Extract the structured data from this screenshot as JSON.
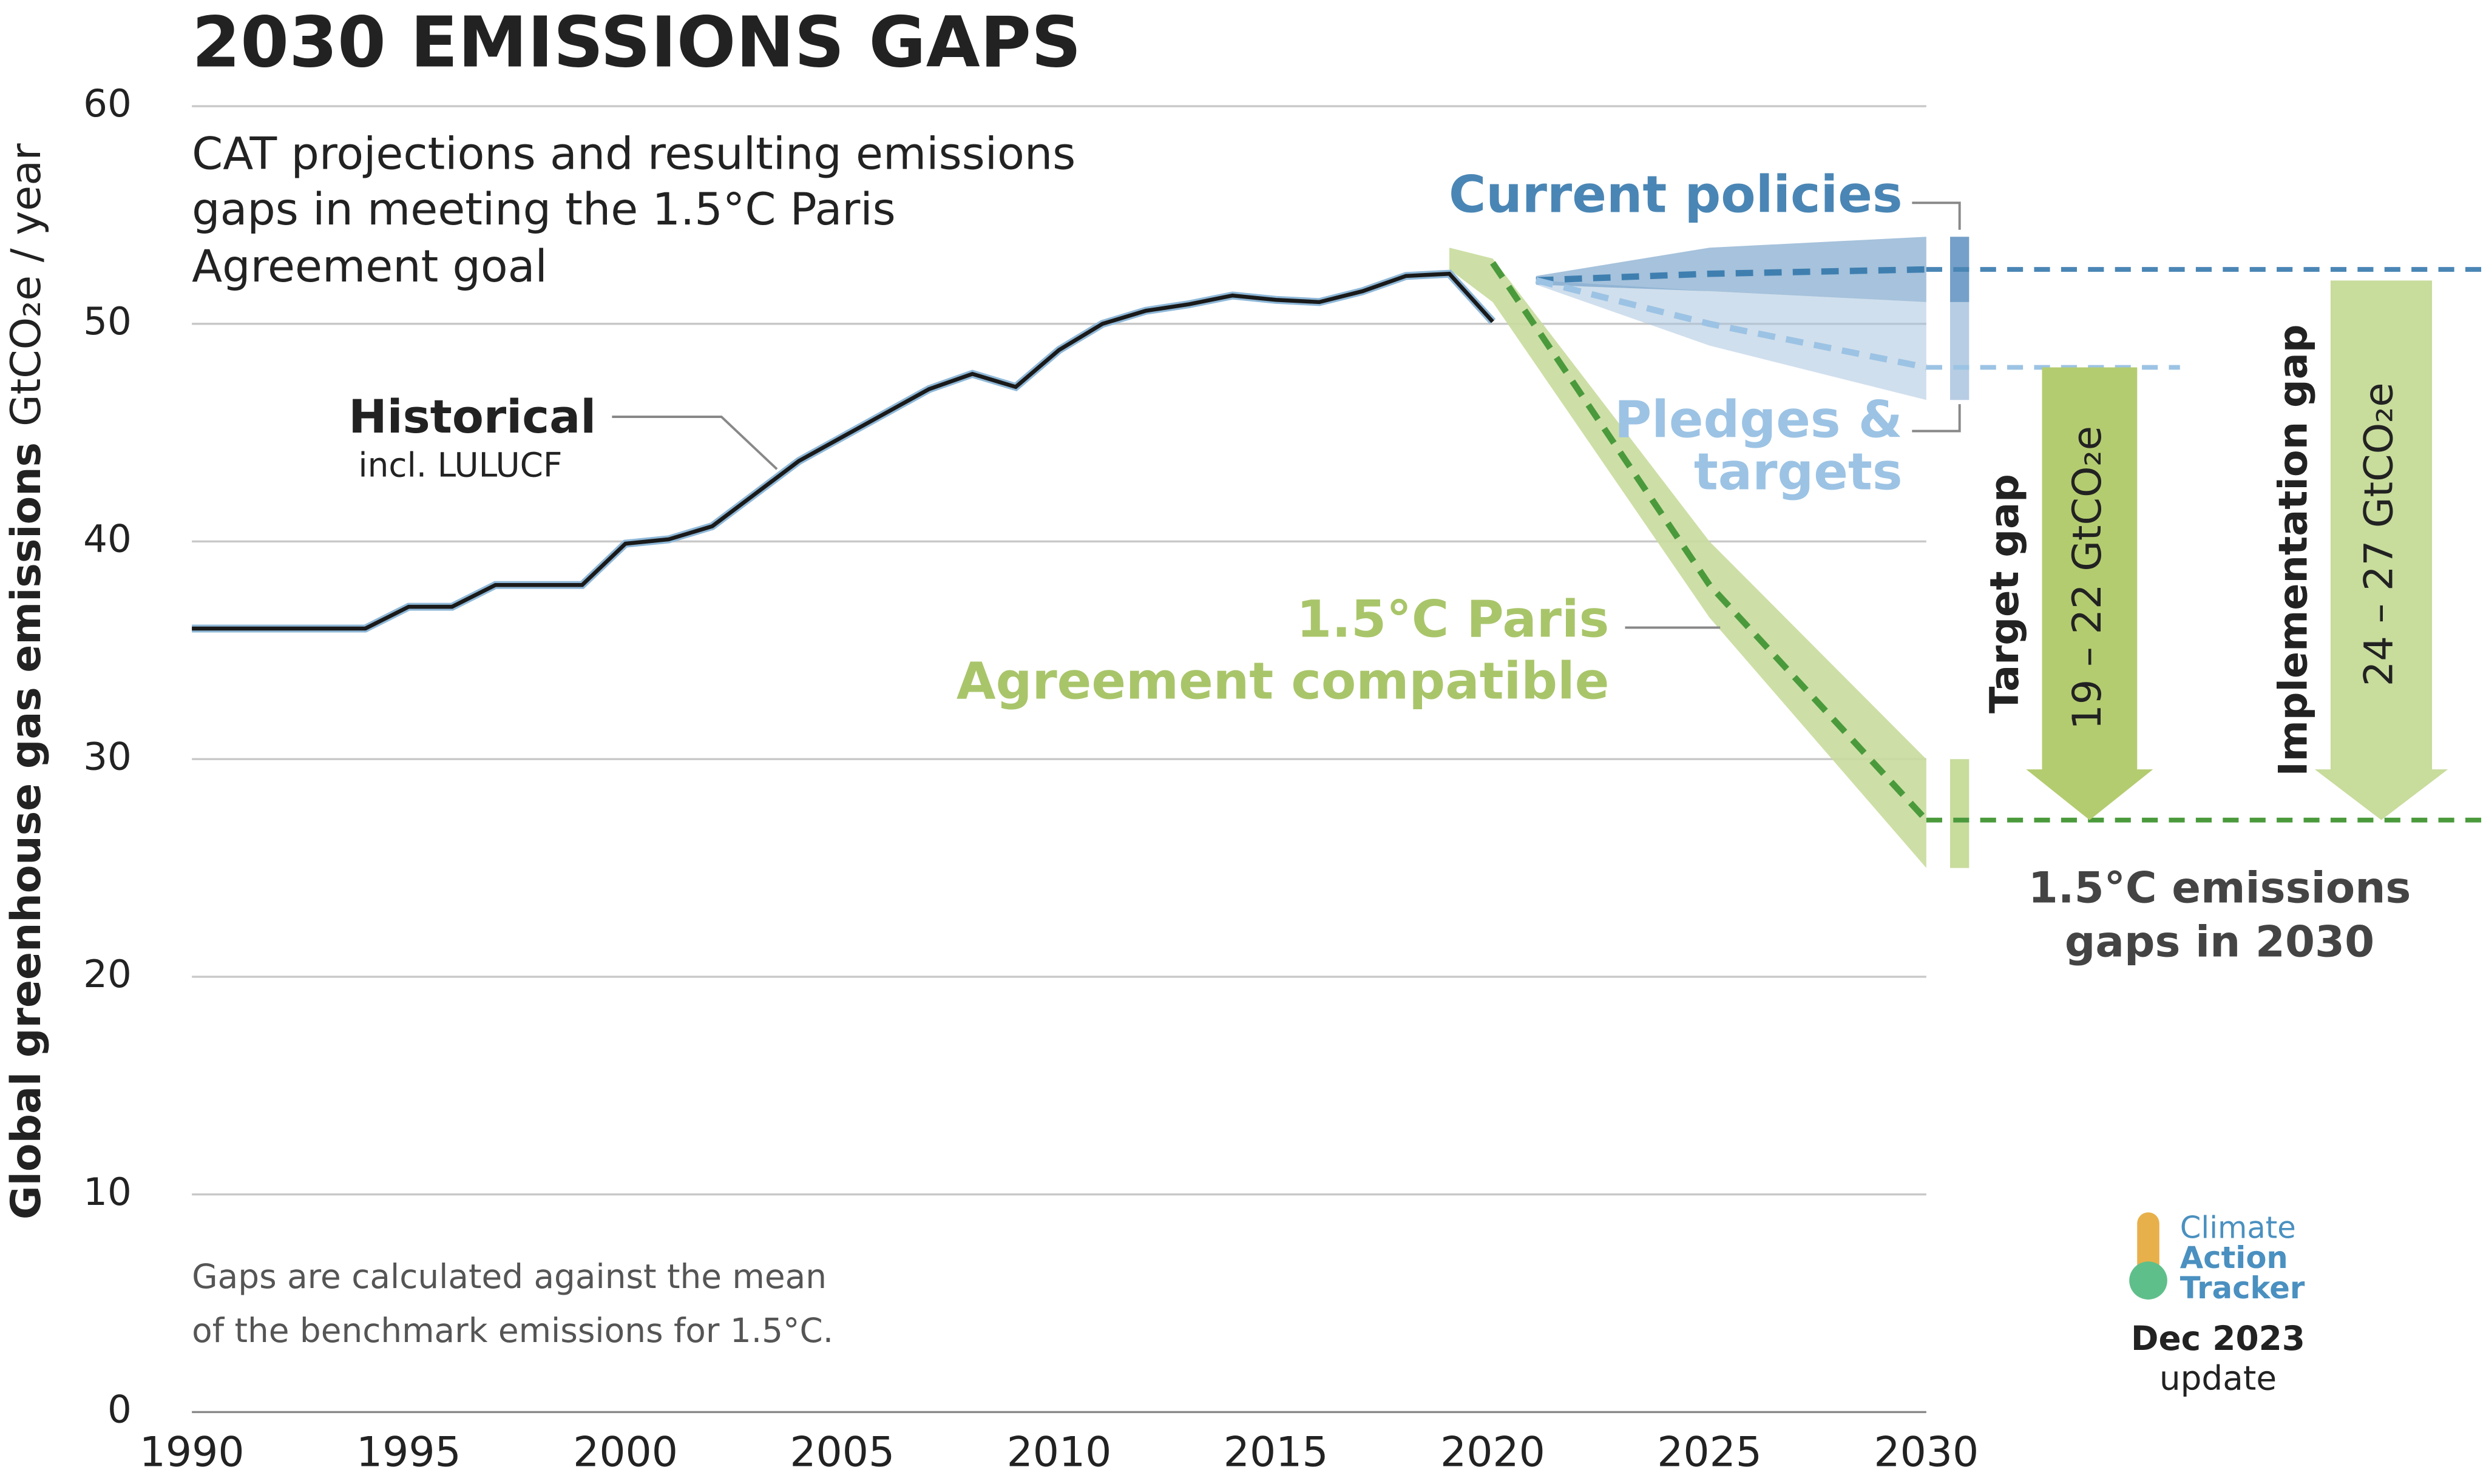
{
  "chart_data": {
    "type": "line",
    "title": "2030 EMISSIONS GAPS",
    "subtitle": [
      "CAT projections and resulting emissions",
      "gaps in meeting the 1.5°C Paris",
      "Agreement goal"
    ],
    "y_label": "Global greenhouse gas emissions",
    "y_unit": "GtCO₂e / year",
    "xlim": [
      1990,
      2030
    ],
    "xticks": [
      1990,
      1995,
      2000,
      2005,
      2010,
      2015,
      2020,
      2025,
      2030
    ],
    "ylim": [
      0,
      60
    ],
    "yticks": [
      0,
      10,
      20,
      30,
      40,
      50,
      60
    ],
    "grid": true,
    "series": [
      {
        "name": "Historical",
        "note_label": "incl. LULUCF",
        "color": "#1a1a1a",
        "x": [
          1990,
          1991,
          1992,
          1993,
          1994,
          1995,
          1996,
          1997,
          1998,
          1999,
          2000,
          2001,
          2002,
          2003,
          2004,
          2005,
          2006,
          2007,
          2008,
          2009,
          2010,
          2011,
          2012,
          2013,
          2014,
          2015,
          2016,
          2017,
          2018,
          2019,
          2020
        ],
        "values": [
          36,
          36,
          36,
          36,
          36,
          37,
          37,
          38,
          38,
          38,
          39.9,
          40.1,
          40.7,
          42.2,
          43.7,
          44.8,
          45.9,
          47,
          47.7,
          47.1,
          48.8,
          50,
          50.6,
          50.9,
          51.3,
          51.1,
          51,
          51.5,
          52.2,
          52.3,
          50.1
        ]
      },
      {
        "name": "Current policies",
        "color": "#4a86b5",
        "x": [
          2021,
          2025,
          2030
        ],
        "values": [
          52,
          52.3,
          52.5
        ],
        "upper": [
          52.2,
          53.5,
          54
        ],
        "lower": [
          51.8,
          51.5,
          51
        ]
      },
      {
        "name": "Pledges & targets",
        "color": "#9cc3e4",
        "x": [
          2021,
          2025,
          2030
        ],
        "values": [
          52,
          50,
          48
        ],
        "upper": [
          52,
          51.5,
          51
        ],
        "lower": [
          51.8,
          49,
          46.5
        ]
      },
      {
        "name": "1.5°C Paris Agreement compatible",
        "color": "#4a9a3c",
        "band_color": "#c8dc9c",
        "x": [
          2019,
          2020,
          2025,
          2030
        ],
        "values": [
          null,
          52.8,
          38,
          27.2
        ],
        "upper": [
          53.5,
          53,
          40,
          30
        ],
        "lower": [
          52.5,
          51,
          36.5,
          25
        ]
      }
    ],
    "gaps": [
      {
        "name": "Target gap",
        "label": "19 – 22 GtCO₂e",
        "color": "#b4cc70"
      },
      {
        "name": "Implementation gap",
        "label": "24 – 27 GtCO₂e",
        "color": "#c8dc9c"
      }
    ],
    "gaps_title": [
      "1.5°C emissions",
      "gaps in 2030"
    ],
    "footnote": [
      "Gaps are calculated against the mean",
      "of the benchmark emissions for 1.5°C."
    ],
    "logo": [
      "Climate",
      "Action",
      "Tracker"
    ],
    "update": [
      "Dec 2023",
      "update"
    ]
  }
}
